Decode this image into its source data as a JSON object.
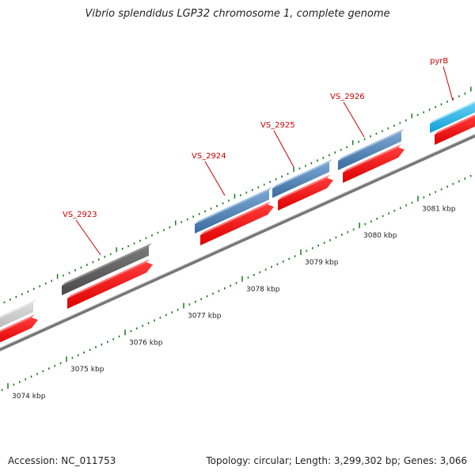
{
  "header": {
    "title": "Vibrio splendidus LGP32 chromosome 1, complete genome"
  },
  "footer": {
    "accession": "Accession: NC_011753",
    "summary": "Topology: circular; Length: 3,299,302 bp; Genes: 3,066"
  },
  "colors": {
    "backbone": "#777777",
    "cds_red": "#ee1111",
    "gene_blue": "#4a7fb3",
    "gene_cyan": "#1fb6ef",
    "gene_gray_dark": "#555555",
    "gene_gray_light": "#c4c4c4",
    "tick": "#1a7a1a",
    "label_red": "#cc0000",
    "tick_label": "#222222"
  },
  "scale": {
    "unit": "kbp",
    "ticks": [
      {
        "kbp": 3074,
        "label": "3074 kbp"
      },
      {
        "kbp": 3075,
        "label": "3075 kbp"
      },
      {
        "kbp": 3076,
        "label": "3076 kbp"
      },
      {
        "kbp": 3077,
        "label": "3077 kbp"
      },
      {
        "kbp": 3078,
        "label": "3078 kbp"
      },
      {
        "kbp": 3079,
        "label": "3079 kbp"
      },
      {
        "kbp": 3080,
        "label": "3080 kbp"
      },
      {
        "kbp": 3081,
        "label": "3081 kbp"
      }
    ]
  },
  "genes": [
    {
      "id": "g1",
      "label": "",
      "style": "gray-light"
    },
    {
      "id": "g2",
      "label": "VS_2923",
      "style": "gray-dark"
    },
    {
      "id": "g3",
      "label": "VS_2924",
      "style": "blue"
    },
    {
      "id": "g4",
      "label": "VS_2925",
      "style": "blue"
    },
    {
      "id": "g5",
      "label": "VS_2926",
      "style": "blue"
    },
    {
      "id": "g6",
      "label": "pyrB",
      "style": "cyan"
    }
  ]
}
